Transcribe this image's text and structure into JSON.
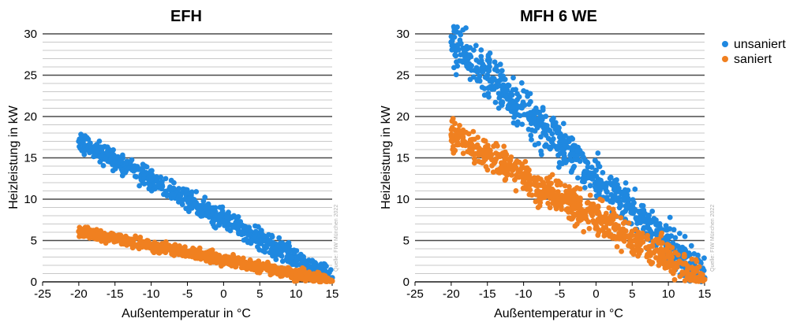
{
  "colors": {
    "unsaniert": "#1f88e0",
    "saniert": "#f08020",
    "major_grid": "#4a4a4a",
    "minor_grid": "#c8c8c8"
  },
  "legend": {
    "placement": "top-right",
    "items": [
      "unsaniert",
      "saniert"
    ]
  },
  "source_note": "Quelle: FIW München 2022",
  "chart_data": [
    {
      "type": "scatter",
      "title": "EFH",
      "xlabel": "Außentemperatur in °C",
      "ylabel": "Heizleistung in kW",
      "xlim": [
        -25,
        15
      ],
      "ylim": [
        0,
        30
      ],
      "xticks": [
        "-25",
        "-20",
        "-15",
        "-10",
        "-5",
        "0",
        "5",
        "10",
        "15"
      ],
      "yticks": [
        "0",
        "5",
        "10",
        "15",
        "20",
        "25",
        "30"
      ],
      "grid": true,
      "series": [
        {
          "name": "unsaniert",
          "x_range": [
            -20,
            15
          ],
          "y_at_min_x": 17,
          "y_at_max_x": 0.5,
          "spread": 1.2,
          "x": [
            -20,
            -17.5,
            -15,
            -12.5,
            -10,
            -7.5,
            -5,
            -2.5,
            0,
            2.5,
            5,
            7.5,
            10,
            12.5,
            15
          ],
          "y": [
            17,
            15.9,
            15,
            13.7,
            12.4,
            11.2,
            10,
            8.9,
            7.3,
            6,
            4.8,
            3.5,
            2.2,
            1.3,
            0.5
          ]
        },
        {
          "name": "saniert",
          "x_range": [
            -20,
            15
          ],
          "y_at_min_x": 6.1,
          "y_at_max_x": 0.1,
          "spread": 0.7,
          "x": [
            -20,
            -17.5,
            -15,
            -12.5,
            -10,
            -7.5,
            -5,
            -2.5,
            0,
            2.5,
            5,
            7.5,
            10,
            12.5,
            15
          ],
          "y": [
            6.1,
            5.7,
            5.3,
            4.8,
            4.4,
            3.9,
            3.5,
            3.1,
            2.6,
            2.1,
            1.7,
            1.2,
            0.8,
            0.4,
            0.1
          ]
        }
      ]
    },
    {
      "type": "scatter",
      "title": "MFH 6 WE",
      "xlabel": "Außentemperatur in °C",
      "ylabel": "Heizleistung in kW",
      "xlim": [
        -25,
        15
      ],
      "ylim": [
        0,
        30
      ],
      "xticks": [
        "-25",
        "-20",
        "-15",
        "-10",
        "-5",
        "0",
        "5",
        "10",
        "15"
      ],
      "yticks": [
        "0",
        "5",
        "10",
        "15",
        "20",
        "25",
        "30"
      ],
      "grid": true,
      "series": [
        {
          "name": "unsaniert",
          "x_range": [
            -20,
            15
          ],
          "y_at_min_x": 29,
          "y_at_max_x": 0.5,
          "spread": 2.5,
          "x": [
            -20,
            -17.5,
            -15,
            -12.5,
            -10,
            -7.5,
            -5,
            -2.5,
            0,
            2.5,
            5,
            7.5,
            10,
            12.5,
            15
          ],
          "y": [
            29,
            27.2,
            25,
            23.1,
            21.5,
            19.6,
            17.5,
            15.8,
            13.5,
            11.5,
            9.3,
            7.4,
            5.3,
            3.2,
            0.5
          ]
        },
        {
          "name": "saniert",
          "x_range": [
            -20,
            15
          ],
          "y_at_min_x": 17.8,
          "y_at_max_x": 0.3,
          "spread": 2.0,
          "x": [
            -20,
            -17.5,
            -15,
            -12.5,
            -10,
            -7.5,
            -5,
            -2.5,
            0,
            2.5,
            5,
            7.5,
            10,
            12.5,
            15
          ],
          "y": [
            17.8,
            16.5,
            15.1,
            13.6,
            12.2,
            10.8,
            9.4,
            8.1,
            6.8,
            5.5,
            4.3,
            3.2,
            2.1,
            1.1,
            0.3
          ]
        }
      ]
    }
  ]
}
